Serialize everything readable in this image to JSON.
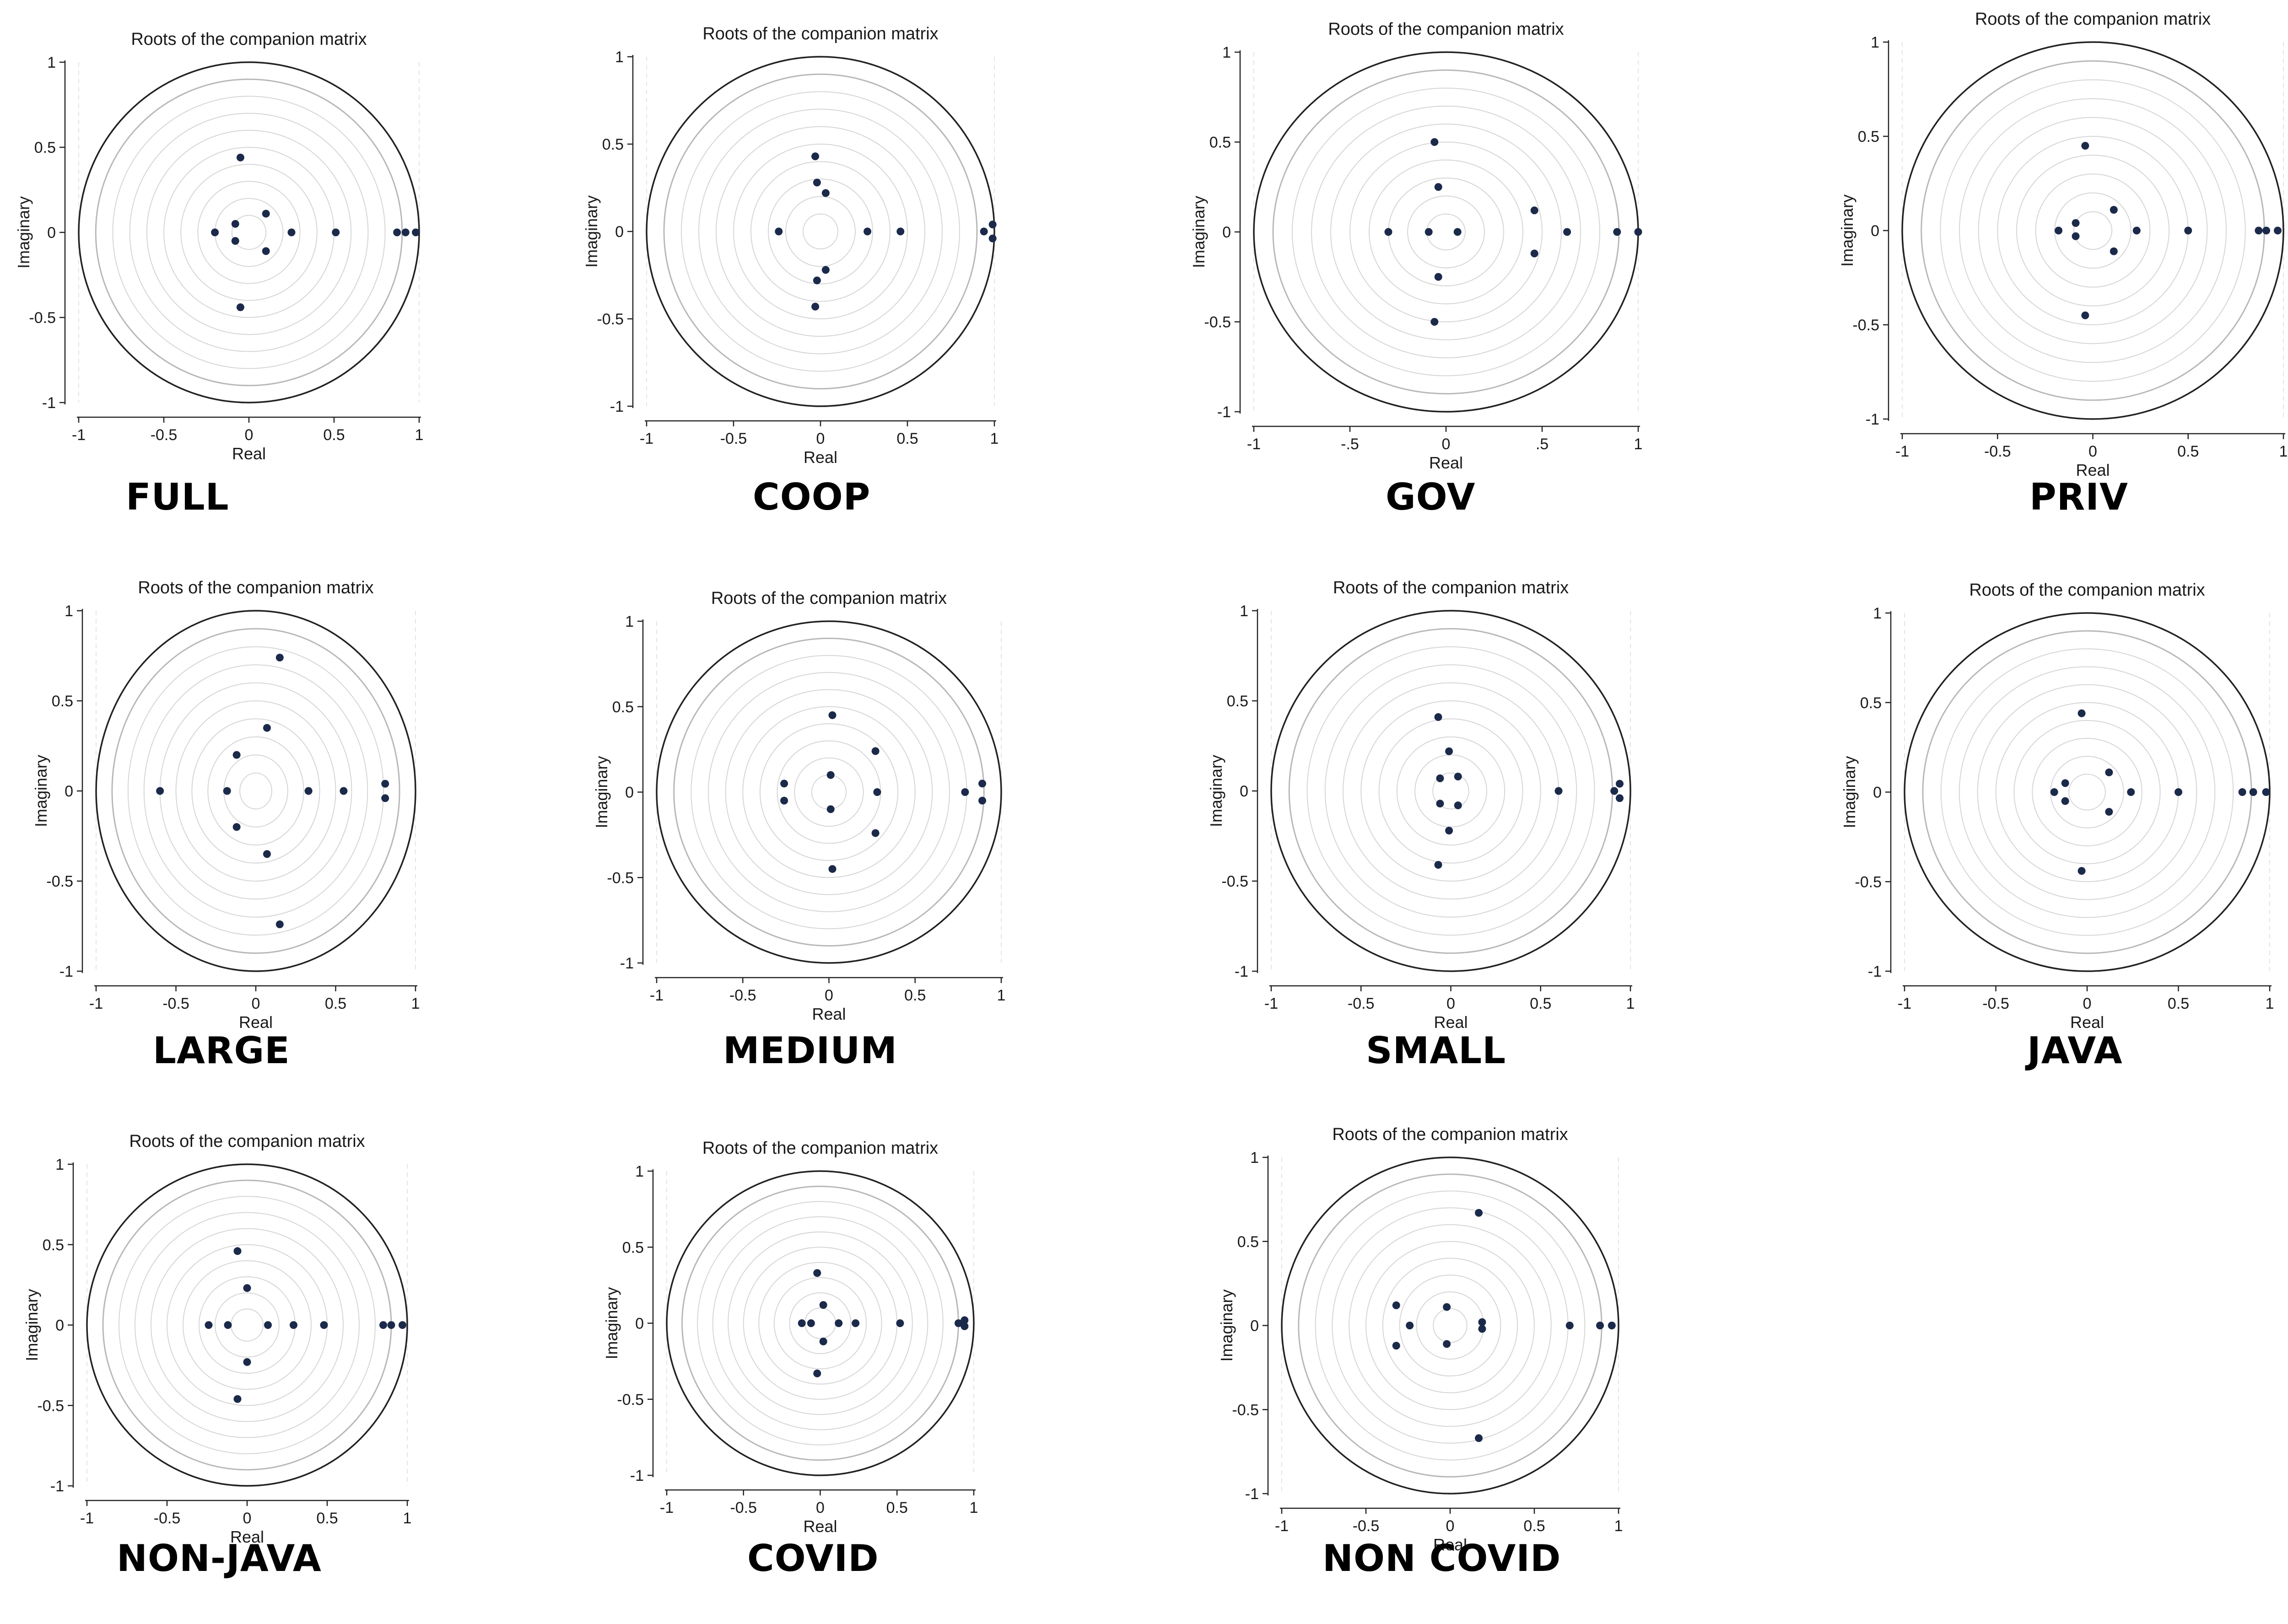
{
  "chart_data": [
    {
      "type": "scatter",
      "caption": "FULL",
      "title": "Roots of the companion matrix",
      "xlabel": "Real",
      "ylabel": "Imaginary",
      "xlim": [
        -1,
        1
      ],
      "ylim": [
        -1,
        1
      ],
      "xticks": [
        "-1",
        "-0.5",
        "0",
        "0.5",
        "1"
      ],
      "yticks": [
        "-1",
        "-0.5",
        "0",
        "0.5",
        "1"
      ],
      "grid": "concentric circles",
      "points": [
        [
          -0.05,
          0.44
        ],
        [
          -0.05,
          -0.44
        ],
        [
          -0.2,
          0
        ],
        [
          -0.08,
          0.05
        ],
        [
          -0.08,
          -0.05
        ],
        [
          0.1,
          0.11
        ],
        [
          0.1,
          -0.11
        ],
        [
          0.25,
          0
        ],
        [
          0.51,
          0
        ],
        [
          0.87,
          0
        ],
        [
          0.92,
          0
        ],
        [
          0.98,
          0
        ]
      ]
    },
    {
      "type": "scatter",
      "caption": "COOP",
      "title": "Roots of the companion matrix",
      "xlabel": "Real",
      "ylabel": "Imaginary",
      "xlim": [
        -1,
        1
      ],
      "ylim": [
        -1,
        1
      ],
      "xticks": [
        "-1",
        "-0.5",
        "0",
        "0.5",
        "1"
      ],
      "yticks": [
        "-1",
        "-0.5",
        "0",
        "0.5",
        "1"
      ],
      "grid": "concentric circles",
      "points": [
        [
          -0.03,
          0.43
        ],
        [
          -0.03,
          -0.43
        ],
        [
          -0.02,
          0.28
        ],
        [
          -0.02,
          -0.28
        ],
        [
          0.03,
          0.22
        ],
        [
          0.03,
          -0.22
        ],
        [
          -0.24,
          0
        ],
        [
          0.27,
          0
        ],
        [
          0.46,
          0
        ],
        [
          0.94,
          0
        ],
        [
          0.99,
          0.04
        ],
        [
          0.99,
          -0.04
        ]
      ]
    },
    {
      "type": "scatter",
      "caption": "GOV",
      "title": "Roots of the companion matrix",
      "xlabel": "Real",
      "ylabel": "Imaginary",
      "xlim": [
        -1,
        1
      ],
      "ylim": [
        -1,
        1
      ],
      "xticks": [
        "-1",
        "-.5",
        "0",
        ".5",
        "1"
      ],
      "yticks": [
        "-1",
        "-0.5",
        "0",
        "0.5",
        "1"
      ],
      "grid": "concentric circles",
      "points": [
        [
          -0.06,
          0.5
        ],
        [
          -0.06,
          -0.5
        ],
        [
          -0.04,
          0.25
        ],
        [
          -0.04,
          -0.25
        ],
        [
          -0.3,
          0
        ],
        [
          -0.09,
          0
        ],
        [
          0.06,
          0
        ],
        [
          0.46,
          0.12
        ],
        [
          0.46,
          -0.12
        ],
        [
          0.63,
          0
        ],
        [
          0.89,
          0
        ],
        [
          1.0,
          0
        ]
      ]
    },
    {
      "type": "scatter",
      "caption": "PRIV",
      "title": "Roots of the companion matrix",
      "xlabel": "Real",
      "ylabel": "Imaginary",
      "xlim": [
        -1,
        1
      ],
      "ylim": [
        -1,
        1
      ],
      "xticks": [
        "-1",
        "-0.5",
        "0",
        "0.5",
        "1"
      ],
      "yticks": [
        "-1",
        "-0.5",
        "0",
        "0.5",
        "1"
      ],
      "grid": "concentric circles",
      "points": [
        [
          -0.04,
          0.45
        ],
        [
          -0.04,
          -0.45
        ],
        [
          -0.18,
          0
        ],
        [
          -0.09,
          0.04
        ],
        [
          -0.09,
          -0.03
        ],
        [
          0.11,
          0.11
        ],
        [
          0.11,
          -0.11
        ],
        [
          0.23,
          0
        ],
        [
          0.5,
          0
        ],
        [
          0.87,
          0
        ],
        [
          0.91,
          0
        ],
        [
          0.97,
          0
        ]
      ]
    },
    {
      "type": "scatter",
      "caption": "LARGE",
      "title": "Roots of the companion matrix",
      "xlabel": "Real",
      "ylabel": "Imaginary",
      "xlim": [
        -1,
        1
      ],
      "ylim": [
        -1,
        1
      ],
      "xticks": [
        "-1",
        "-0.5",
        "0",
        "0.5",
        "1"
      ],
      "yticks": [
        "-1",
        "-0.5",
        "0",
        "0.5",
        "1"
      ],
      "grid": "concentric circles",
      "points": [
        [
          0.15,
          0.74
        ],
        [
          0.15,
          -0.74
        ],
        [
          0.07,
          0.35
        ],
        [
          0.07,
          -0.35
        ],
        [
          -0.12,
          0.2
        ],
        [
          -0.12,
          -0.2
        ],
        [
          -0.6,
          0
        ],
        [
          -0.18,
          0
        ],
        [
          0.33,
          0
        ],
        [
          0.55,
          0
        ],
        [
          0.81,
          0.04
        ],
        [
          0.81,
          -0.04
        ]
      ]
    },
    {
      "type": "scatter",
      "caption": "MEDIUM",
      "title": "Roots of the companion matrix",
      "xlabel": "Real",
      "ylabel": "Imaginary",
      "xlim": [
        -1,
        1
      ],
      "ylim": [
        -1,
        1
      ],
      "xticks": [
        "-1",
        "-0.5",
        "0",
        "0.5",
        "1"
      ],
      "yticks": [
        "-1",
        "-0.5",
        "0",
        "0.5",
        "1"
      ],
      "grid": "concentric circles",
      "points": [
        [
          0.02,
          0.45
        ],
        [
          0.02,
          -0.45
        ],
        [
          0.01,
          0.1
        ],
        [
          0.01,
          -0.1
        ],
        [
          -0.26,
          0.05
        ],
        [
          -0.26,
          -0.05
        ],
        [
          0.27,
          0.24
        ],
        [
          0.27,
          -0.24
        ],
        [
          0.28,
          0
        ],
        [
          0.79,
          0
        ],
        [
          0.89,
          0.05
        ],
        [
          0.89,
          -0.05
        ]
      ]
    },
    {
      "type": "scatter",
      "caption": "SMALL",
      "title": "Roots of the companion matrix",
      "xlabel": "Real",
      "ylabel": "Imaginary",
      "xlim": [
        -1,
        1
      ],
      "ylim": [
        -1,
        1
      ],
      "xticks": [
        "-1",
        "-0.5",
        "0",
        "0.5",
        "1"
      ],
      "yticks": [
        "-1",
        "-0.5",
        "0",
        "0.5",
        "1"
      ],
      "grid": "concentric circles",
      "points": [
        [
          -0.07,
          0.41
        ],
        [
          -0.07,
          -0.41
        ],
        [
          -0.01,
          0.22
        ],
        [
          -0.01,
          -0.22
        ],
        [
          -0.06,
          0.07
        ],
        [
          -0.06,
          -0.07
        ],
        [
          0.04,
          0.08
        ],
        [
          0.04,
          -0.08
        ],
        [
          0.6,
          0
        ],
        [
          0.91,
          0
        ],
        [
          0.94,
          0.04
        ],
        [
          0.94,
          -0.04
        ]
      ]
    },
    {
      "type": "scatter",
      "caption": "JAVA",
      "title": "Roots of the companion matrix",
      "xlabel": "Real",
      "ylabel": "Imaginary",
      "xlim": [
        -1,
        1
      ],
      "ylim": [
        -1,
        1
      ],
      "xticks": [
        "-1",
        "-0.5",
        "0",
        "0.5",
        "1"
      ],
      "yticks": [
        "-1",
        "-0.5",
        "0",
        "0.5",
        "1"
      ],
      "grid": "concentric circles",
      "points": [
        [
          -0.03,
          0.44
        ],
        [
          -0.03,
          -0.44
        ],
        [
          -0.18,
          0
        ],
        [
          -0.12,
          0.05
        ],
        [
          -0.12,
          -0.05
        ],
        [
          0.12,
          0.11
        ],
        [
          0.12,
          -0.11
        ],
        [
          0.24,
          0
        ],
        [
          0.5,
          0
        ],
        [
          0.85,
          0
        ],
        [
          0.91,
          0
        ],
        [
          0.98,
          0
        ]
      ]
    },
    {
      "type": "scatter",
      "caption": "NON-JAVA",
      "title": "Roots of the companion matrix",
      "xlabel": "Real",
      "ylabel": "Imaginary",
      "xlim": [
        -1,
        1
      ],
      "ylim": [
        -1,
        1
      ],
      "xticks": [
        "-1",
        "-0.5",
        "0",
        "0.5",
        "1"
      ],
      "yticks": [
        "-1",
        "-0.5",
        "0",
        "0.5",
        "1"
      ],
      "grid": "concentric circles",
      "points": [
        [
          -0.06,
          0.46
        ],
        [
          -0.06,
          -0.46
        ],
        [
          0.0,
          0.23
        ],
        [
          0.0,
          -0.23
        ],
        [
          -0.24,
          0
        ],
        [
          -0.12,
          0
        ],
        [
          0.13,
          0
        ],
        [
          0.29,
          0
        ],
        [
          0.48,
          0
        ],
        [
          0.85,
          0
        ],
        [
          0.9,
          0
        ],
        [
          0.97,
          0
        ]
      ]
    },
    {
      "type": "scatter",
      "caption": "COVID",
      "title": "Roots of the companion matrix",
      "xlabel": "Real",
      "ylabel": "Imaginary",
      "xlim": [
        -1,
        1
      ],
      "ylim": [
        -1,
        1
      ],
      "xticks": [
        "-1",
        "-0.5",
        "0",
        "0.5",
        "1"
      ],
      "yticks": [
        "-1",
        "-0.5",
        "0",
        "0.5",
        "1"
      ],
      "grid": "concentric circles",
      "points": [
        [
          -0.02,
          0.33
        ],
        [
          -0.02,
          -0.33
        ],
        [
          0.02,
          0.12
        ],
        [
          0.02,
          -0.12
        ],
        [
          -0.12,
          0
        ],
        [
          -0.06,
          0
        ],
        [
          0.12,
          0
        ],
        [
          0.23,
          0
        ],
        [
          0.52,
          0
        ],
        [
          0.9,
          0
        ],
        [
          0.94,
          0.02
        ],
        [
          0.94,
          -0.02
        ]
      ]
    },
    {
      "type": "scatter",
      "caption": "NON COVID",
      "title": "Roots of the companion matrix",
      "xlabel": "Real",
      "ylabel": "Imaginary",
      "xlim": [
        -1,
        1
      ],
      "ylim": [
        -1,
        1
      ],
      "xticks": [
        "-1",
        "-0.5",
        "0",
        "0.5",
        "1"
      ],
      "yticks": [
        "-1",
        "-0.5",
        "0",
        "0.5",
        "1"
      ],
      "grid": "concentric circles",
      "points": [
        [
          0.17,
          0.67
        ],
        [
          0.17,
          -0.67
        ],
        [
          -0.32,
          0.12
        ],
        [
          -0.32,
          -0.12
        ],
        [
          -0.24,
          0
        ],
        [
          -0.02,
          0.11
        ],
        [
          -0.02,
          -0.11
        ],
        [
          0.19,
          0.02
        ],
        [
          0.19,
          -0.02
        ],
        [
          0.71,
          0
        ],
        [
          0.89,
          0
        ],
        [
          0.96,
          0
        ]
      ]
    }
  ]
}
